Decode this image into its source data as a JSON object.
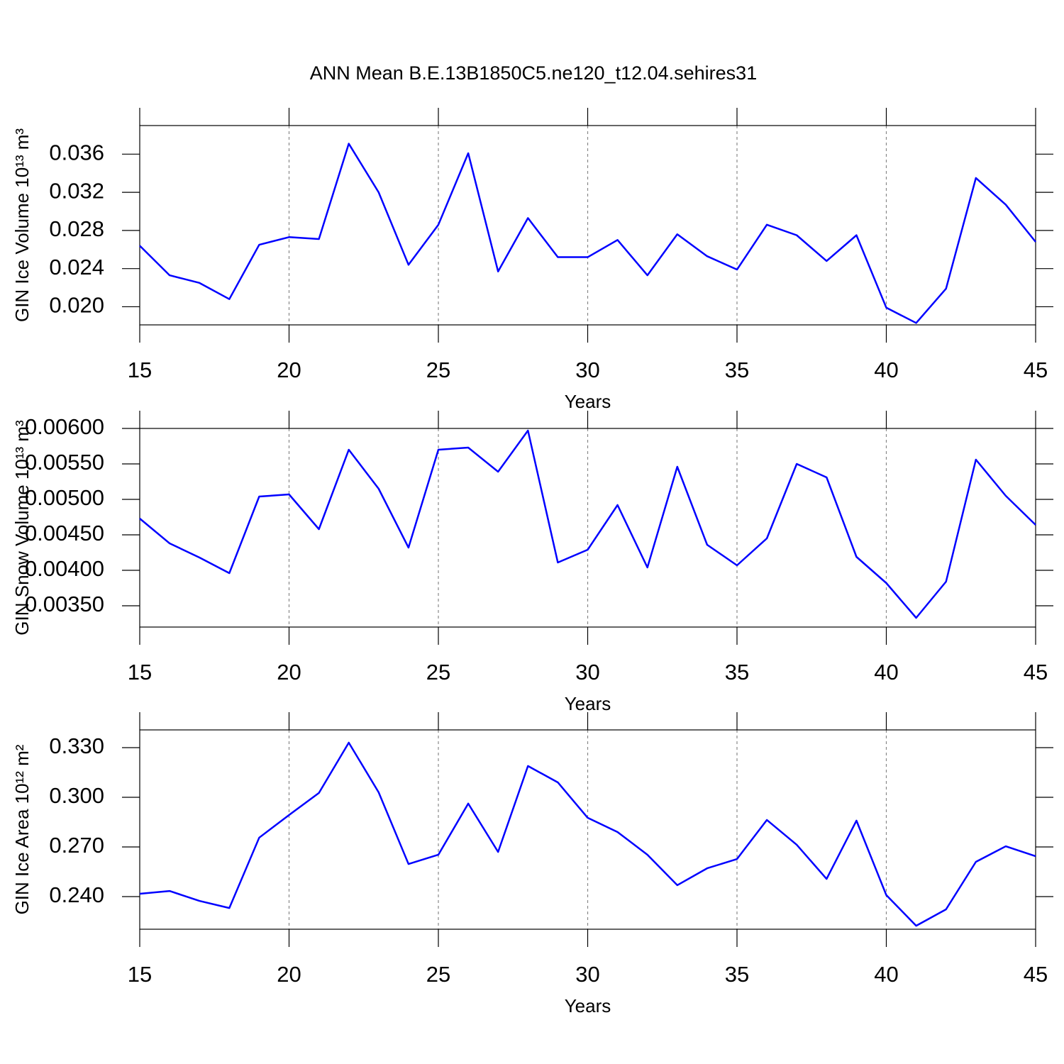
{
  "title": "ANN Mean B.E.13B1850C5.ne120_t12.04.sehires31",
  "chart_data": [
    {
      "type": "line",
      "ylabel": "GIN Ice Volume 10¹³ m³",
      "xlabel": "Years",
      "color": "#0000ff",
      "grid": "x",
      "x": [
        15,
        16,
        17,
        18,
        19,
        20,
        21,
        22,
        23,
        24,
        25,
        26,
        27,
        28,
        29,
        30,
        31,
        32,
        33,
        34,
        35,
        36,
        37,
        38,
        39,
        40,
        41,
        42,
        43,
        44,
        45
      ],
      "values": [
        0.0264,
        0.0233,
        0.0225,
        0.0208,
        0.0265,
        0.0273,
        0.0271,
        0.0371,
        0.032,
        0.0244,
        0.0286,
        0.0361,
        0.0237,
        0.0293,
        0.0252,
        0.0252,
        0.027,
        0.0233,
        0.0276,
        0.0253,
        0.0239,
        0.0286,
        0.0275,
        0.0248,
        0.0275,
        0.0199,
        0.0183,
        0.0219,
        0.0335,
        0.0307,
        0.0268
      ],
      "xlim": [
        15,
        45
      ],
      "xticks": [
        15,
        20,
        25,
        30,
        35,
        40,
        45
      ],
      "ylim": [
        0.0181,
        0.039
      ],
      "yticks": [
        {
          "value": 0.02,
          "label": "0.020"
        },
        0.024,
        0.028,
        0.032,
        0.036
      ]
    },
    {
      "type": "line",
      "ylabel": "GIN Snow Volume 10¹³ m³",
      "xlabel": "Years",
      "color": "#0000ff",
      "grid": "x",
      "x": [
        15,
        16,
        17,
        18,
        19,
        20,
        21,
        22,
        23,
        24,
        25,
        26,
        27,
        28,
        29,
        30,
        31,
        32,
        33,
        34,
        35,
        36,
        37,
        38,
        39,
        40,
        41,
        42,
        43,
        44,
        45
      ],
      "values": [
        0.00473,
        0.00438,
        0.00418,
        0.00396,
        0.00504,
        0.00507,
        0.00458,
        0.0057,
        0.00515,
        0.00432,
        0.0057,
        0.00573,
        0.00539,
        0.00597,
        0.00411,
        0.00429,
        0.00492,
        0.00404,
        0.00546,
        0.00436,
        0.00407,
        0.00445,
        0.0055,
        0.00531,
        0.00419,
        0.00382,
        0.00333,
        0.00384,
        0.00556,
        0.00505,
        0.00464
      ],
      "xlim": [
        15,
        45
      ],
      "xticks": [
        15,
        20,
        25,
        30,
        35,
        40,
        45
      ],
      "ylim": [
        0.0032,
        0.006
      ],
      "yticks": [
        {
          "value": 0.0035,
          "label": "0.00350"
        },
        {
          "value": 0.004,
          "label": "0.00400"
        },
        {
          "value": 0.0045,
          "label": "0.00450"
        },
        {
          "value": 0.005,
          "label": "0.00500"
        },
        {
          "value": 0.0055,
          "label": "0.00550"
        },
        {
          "value": 0.006,
          "label": "0.00600"
        }
      ]
    },
    {
      "type": "line",
      "ylabel": "GIN Ice Area 10¹² m²",
      "xlabel": "Years",
      "color": "#0000ff",
      "grid": "x",
      "x": [
        15,
        16,
        17,
        18,
        19,
        20,
        21,
        22,
        23,
        24,
        25,
        26,
        27,
        28,
        29,
        30,
        31,
        32,
        33,
        34,
        35,
        36,
        37,
        38,
        39,
        40,
        41,
        42,
        43,
        44,
        45
      ],
      "values": [
        0.2417,
        0.2434,
        0.2374,
        0.2331,
        0.2756,
        0.2893,
        0.3026,
        0.333,
        0.303,
        0.2597,
        0.2653,
        0.2962,
        0.267,
        0.3189,
        0.309,
        0.2876,
        0.279,
        0.2653,
        0.2469,
        0.2571,
        0.2627,
        0.2863,
        0.2713,
        0.2507,
        0.2859,
        0.2409,
        0.2224,
        0.2323,
        0.261,
        0.2704,
        0.2644
      ],
      "xlim": [
        15,
        45
      ],
      "xticks": [
        15,
        20,
        25,
        30,
        35,
        40,
        45
      ],
      "ylim": [
        0.2203,
        0.3407
      ],
      "yticks": [
        {
          "value": 0.24,
          "label": "0.240"
        },
        {
          "value": 0.27,
          "label": "0.270"
        },
        {
          "value": 0.3,
          "label": "0.300"
        },
        {
          "value": 0.33,
          "label": "0.330"
        }
      ]
    }
  ]
}
